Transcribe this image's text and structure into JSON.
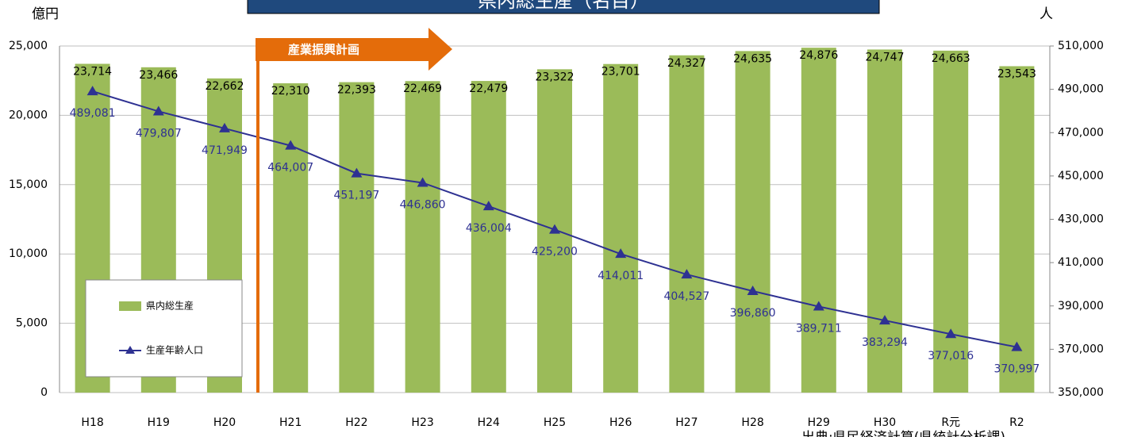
{
  "chart_data": {
    "type": "bar_line",
    "title": "県内総生産（名目）",
    "y_label": "億円",
    "y2_label": "人",
    "annotation": "産業振興計画",
    "source": "出典:県民経済計算(県統計分析課)",
    "categories": [
      "H18",
      "H19",
      "H20",
      "H21",
      "H22",
      "H23",
      "H24",
      "H25",
      "H26",
      "H27",
      "H28",
      "H29",
      "H30",
      "R元",
      "R2"
    ],
    "series": [
      {
        "name": "県内総生産",
        "color": "#9bbb59",
        "type": "bar",
        "values": [
          23714,
          23466,
          22662,
          22310,
          22393,
          22469,
          22479,
          23322,
          23701,
          24327,
          24635,
          24876,
          24747,
          24663,
          23543
        ],
        "value_labels": [
          "23,714",
          "23,466",
          "22,662",
          "22,310",
          "22,393",
          "22,469",
          "22,479",
          "23,322",
          "23,701",
          "24,327",
          "24,635",
          "24,876",
          "24,747",
          "24,663",
          "23,543"
        ]
      },
      {
        "name": "生産年齢人口",
        "color": "#2e3192",
        "type": "line",
        "axis": "y2",
        "values": [
          489081,
          479807,
          471949,
          464007,
          451197,
          446860,
          436004,
          425200,
          414011,
          404527,
          396860,
          389711,
          383294,
          377016,
          370997
        ],
        "value_labels": [
          "489,081",
          "479,807",
          "471,949",
          "464,007",
          "451,197",
          "446,860",
          "436,004",
          "425,200",
          "414,011",
          "404,527",
          "396,860",
          "389,711",
          "383,294",
          "377,016",
          "370,997"
        ]
      }
    ],
    "ylim": [
      0,
      25000
    ],
    "yticks": [
      0,
      {
        "value": 5000,
        "label": "5,000"
      },
      {
        "value": 10000,
        "label": "10,000"
      },
      {
        "value": 15000,
        "label": "15,000"
      },
      {
        "value": 20000,
        "label": "20,000"
      },
      {
        "value": 25000,
        "label": "25,000"
      }
    ],
    "y2lim": [
      350000,
      510000
    ],
    "y2ticks": [
      {
        "value": 350000,
        "label": "350,000"
      },
      {
        "value": 370000,
        "label": "370,000"
      },
      {
        "value": 390000,
        "label": "390,000"
      },
      {
        "value": 410000,
        "label": "410,000"
      },
      {
        "value": 430000,
        "label": "430,000"
      },
      {
        "value": 450000,
        "label": "450,000"
      },
      {
        "value": 470000,
        "label": "470,000"
      },
      {
        "value": 490000,
        "label": "490,000"
      },
      {
        "value": 510000,
        "label": "510,000"
      }
    ],
    "grid": true
  }
}
